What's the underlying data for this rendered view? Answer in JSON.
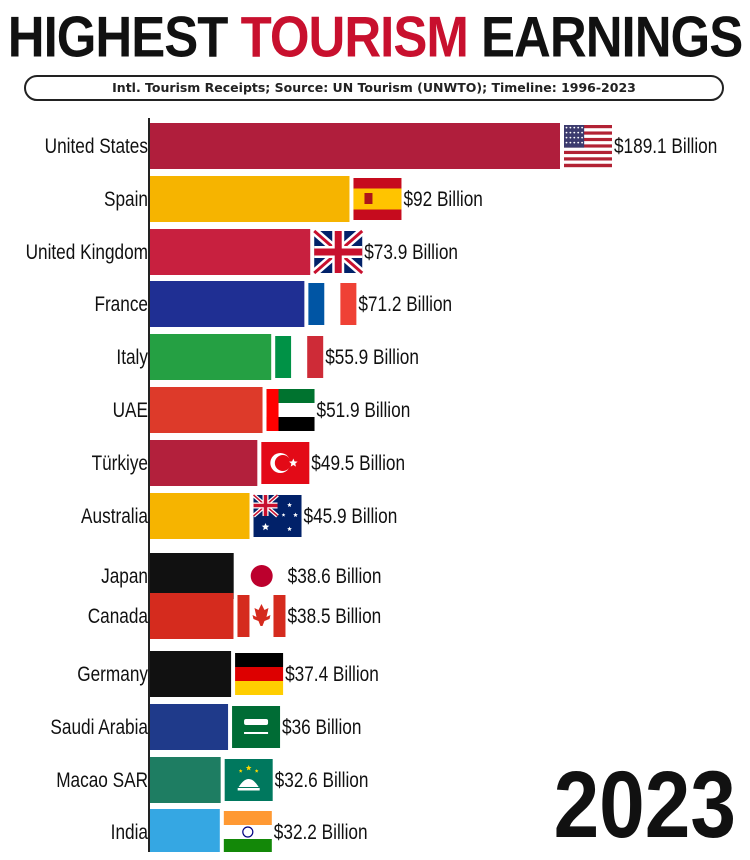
{
  "header": {
    "title_part1": "HIGHEST ",
    "title_highlight": "TOURISM",
    "title_part2": " EARNINGS",
    "subtitle": "Intl. Tourism Receipts; Source: UN Tourism (UNWTO); Timeline: 1996-2023"
  },
  "year_label": "2023",
  "chart_data": {
    "type": "bar",
    "orientation": "horizontal",
    "title": "HIGHEST TOURISM EARNINGS",
    "subtitle": "Intl. Tourism Receipts; Source: UN Tourism (UNWTO); Timeline: 1996-2023",
    "categories": [
      "United States",
      "Spain",
      "United Kingdom",
      "France",
      "Italy",
      "UAE",
      "Türkiye",
      "Australia",
      "Japan",
      "Canada",
      "Germany",
      "Saudi Arabia",
      "Macao SAR",
      "India"
    ],
    "values": [
      189.1,
      92,
      73.9,
      71.2,
      55.9,
      51.9,
      49.5,
      45.9,
      38.6,
      38.5,
      37.4,
      36,
      32.6,
      32.2
    ],
    "value_labels": [
      "$189.1 Billion",
      "$92 Billion",
      "$73.9 Billion",
      "$71.2 Billion",
      "$55.9 Billion",
      "$51.9 Billion",
      "$49.5 Billion",
      "$45.9 Billion",
      "$38.6 Billion",
      "$38.5 Billion",
      "$37.4 Billion",
      "$36 Billion",
      "$32.6 Billion",
      "$32.2 Billion"
    ],
    "unit": "Billion USD",
    "colors": [
      "#b01e3c",
      "#f6b400",
      "#c8203f",
      "#1f2f93",
      "#25a043",
      "#dd3a2a",
      "#b3203c",
      "#f6b400",
      "#111111",
      "#d52b1e",
      "#111111",
      "#1f3a8a",
      "#1e7d62",
      "#35a7e3"
    ],
    "flags": [
      "flag-usa-icon",
      "flag-spain-icon",
      "flag-uk-icon",
      "flag-france-icon",
      "flag-italy-icon",
      "flag-uae-icon",
      "flag-turkiye-icon",
      "flag-australia-icon",
      "flag-japan-icon",
      "flag-canada-icon",
      "flag-germany-icon",
      "flag-saudi-arabia-icon",
      "flag-macao-icon",
      "flag-india-icon"
    ],
    "xlim": [
      0,
      189.1
    ],
    "grid": false,
    "legend": "none",
    "time_label": "2023"
  }
}
